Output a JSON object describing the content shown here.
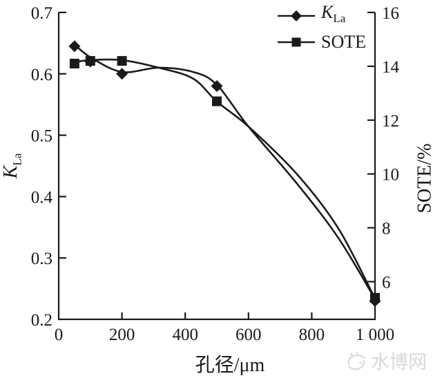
{
  "chart_data": {
    "type": "line",
    "title": "",
    "xlabel": "孔径/μm",
    "x_axis": {
      "range": [
        0,
        1000
      ],
      "tick_values": [
        0,
        200,
        400,
        600,
        800,
        1000
      ],
      "tick_labels": [
        "0",
        "200",
        "400",
        "600",
        "800",
        "1 000"
      ]
    },
    "left_axis": {
      "label_main": "K",
      "label_sub": "La",
      "range": [
        0.2,
        0.7
      ],
      "tick_values": [
        0.7,
        0.6,
        0.5,
        0.4,
        0.3,
        0.2
      ],
      "tick_labels": [
        "0.7",
        "0.6",
        "0.5",
        "0.4",
        "0.3",
        "0.2"
      ]
    },
    "right_axis": {
      "label": "SOTE/%",
      "range": [
        4.6,
        16
      ],
      "tick_values": [
        16,
        14,
        12,
        10,
        8,
        6
      ],
      "tick_labels": [
        "16",
        "14",
        "12",
        "10",
        "8",
        "6"
      ]
    },
    "series": [
      {
        "name": "KLa",
        "axis": "left",
        "marker": "diamond",
        "x": [
          50,
          100,
          200,
          500,
          1000
        ],
        "values": [
          0.645,
          0.62,
          0.6,
          0.58,
          0.23
        ],
        "trend_x": [
          50,
          100,
          200,
          315,
          425,
          500,
          600,
          755,
          885,
          1000
        ],
        "trend_values": [
          0.648,
          0.627,
          0.603,
          0.61,
          0.603,
          0.582,
          0.514,
          0.42,
          0.332,
          0.233
        ]
      },
      {
        "name": "SOTE",
        "axis": "right",
        "marker": "square",
        "x": [
          50,
          100,
          200,
          500,
          1000
        ],
        "values": [
          14.1,
          14.2,
          14.2,
          12.7,
          5.4
        ],
        "trend_x": [
          50,
          100,
          200,
          315,
          425,
          500,
          600,
          755,
          885,
          1000
        ],
        "trend_values": [
          14.15,
          14.23,
          14.23,
          13.95,
          13.54,
          12.69,
          11.76,
          9.97,
          7.96,
          5.37
        ]
      }
    ],
    "legend": [
      {
        "marker": "diamond",
        "label_main": "K",
        "label_sub": "La"
      },
      {
        "marker": "square",
        "label": "SOTE"
      }
    ],
    "grid": false,
    "legend_position": "top-right"
  },
  "watermark": {
    "text": "水博网"
  },
  "colors": {
    "ink": "#1a1a1a",
    "watermark": "#d8d8d8",
    "background": "#ffffff"
  }
}
